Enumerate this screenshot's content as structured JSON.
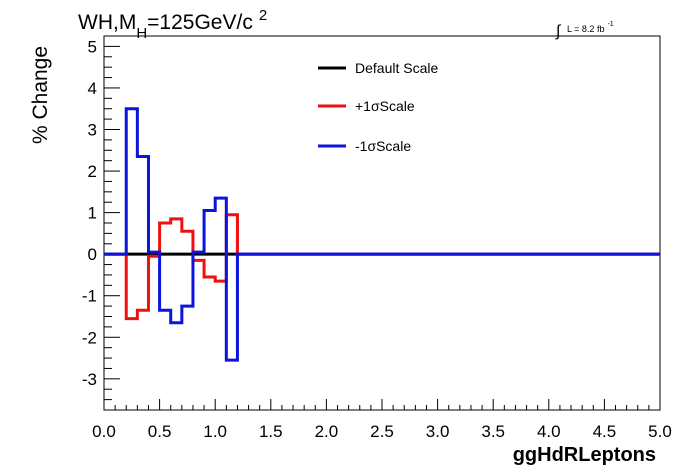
{
  "chart_data": {
    "type": "line",
    "title": {
      "main": "WH,M",
      "sub": "H",
      "rest": "=125GeV/c",
      "sup": "2"
    },
    "lumi": {
      "integral": "∫",
      "text": "L = 8.2 fb",
      "sup": "-1"
    },
    "xlabel": "ggHdRLeptons",
    "ylabel": "% Change",
    "xlim": [
      0,
      5
    ],
    "ylim": [
      -3.75,
      5.25
    ],
    "xticks": [
      "0.0",
      "0.5",
      "1.0",
      "1.5",
      "2.0",
      "2.5",
      "3.0",
      "3.5",
      "4.0",
      "4.5",
      "5.0"
    ],
    "yticks": [
      "-3",
      "-2",
      "-1",
      "0",
      "1",
      "2",
      "3",
      "4",
      "5"
    ],
    "legend_position": "top-center",
    "bin_edges": [
      0,
      0.2,
      0.3,
      0.4,
      0.5,
      0.6,
      0.7,
      0.8,
      0.9,
      1.0,
      1.1,
      1.2,
      5.0
    ],
    "series": [
      {
        "name": "Default Scale",
        "color": "#000000",
        "values": [
          0,
          0,
          0,
          0,
          0,
          0,
          0,
          0,
          0,
          0,
          0,
          0
        ]
      },
      {
        "name": "+1σScale",
        "color": "#ee1111",
        "values": [
          0,
          -1.55,
          -1.35,
          -0.05,
          0.75,
          0.85,
          0.55,
          -0.15,
          -0.55,
          -0.65,
          0.95,
          0
        ]
      },
      {
        "name": "-1σScale",
        "color": "#0a14dc",
        "values": [
          0,
          3.5,
          2.35,
          0.05,
          -1.35,
          -1.65,
          -1.25,
          0.05,
          1.05,
          1.35,
          -2.55,
          0
        ]
      }
    ]
  }
}
